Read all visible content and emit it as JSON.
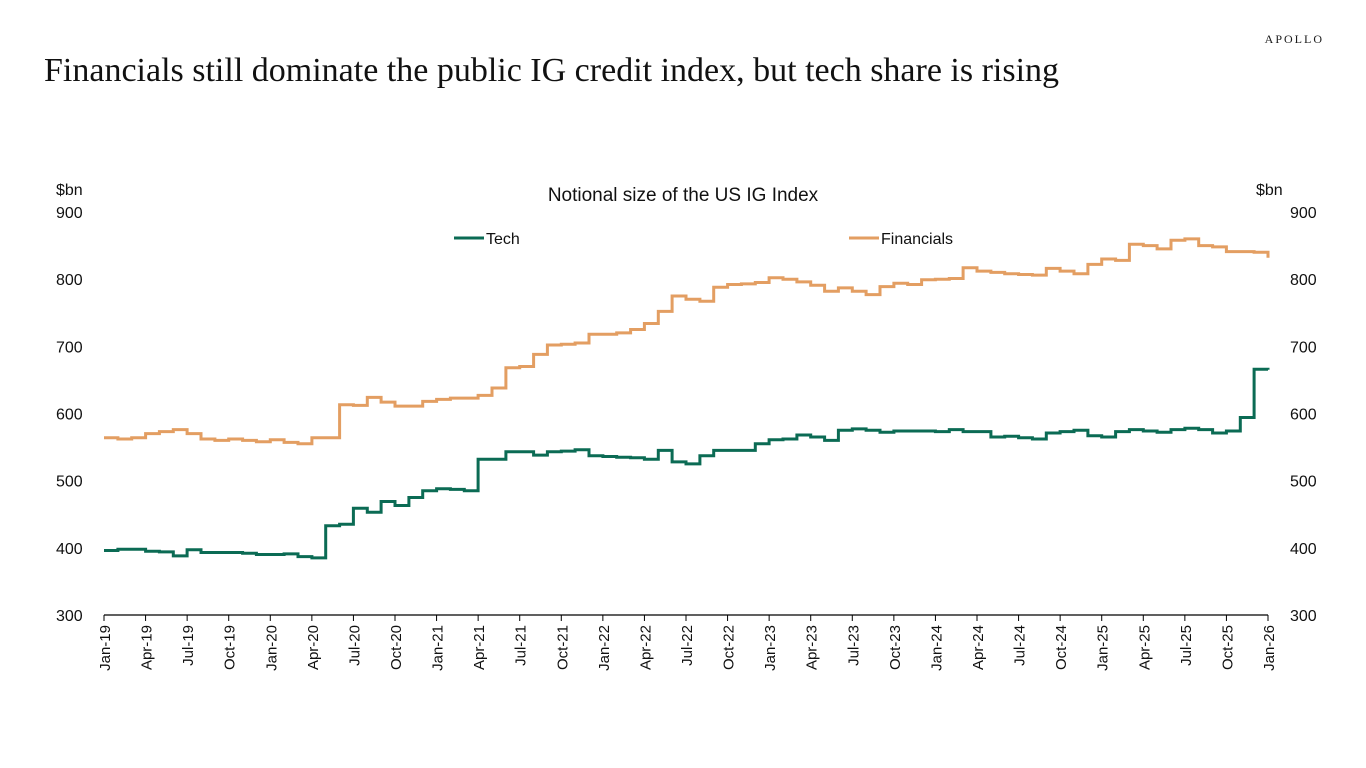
{
  "brand": "APOLLO",
  "headline": "Financials still dominate the public IG credit index, but tech share is rising",
  "colors": {
    "tech": "#0b6b54",
    "financials": "#e39e62",
    "axis": "#000000"
  },
  "chart_data": {
    "type": "line",
    "title": "Notional size of the US IG Index",
    "y_unit_left": "$bn",
    "y_unit_right": "$bn",
    "ylim": [
      300,
      900
    ],
    "yticks": [
      300,
      400,
      500,
      600,
      700,
      800,
      900
    ],
    "grid": false,
    "legend_placement": "top",
    "x_tick_labels": [
      "Jan-19",
      "Apr-19",
      "Jul-19",
      "Oct-19",
      "Jan-20",
      "Apr-20",
      "Jul-20",
      "Oct-20",
      "Jan-21",
      "Apr-21",
      "Jul-21",
      "Oct-21",
      "Jan-22",
      "Apr-22",
      "Jul-22",
      "Oct-22",
      "Jan-23",
      "Apr-23",
      "Jul-23",
      "Oct-23",
      "Jan-24",
      "Apr-24",
      "Jul-24",
      "Oct-24",
      "Jan-25",
      "Apr-25",
      "Jul-25",
      "Oct-25",
      "Jan-26"
    ],
    "x": [
      "Jan-19",
      "Feb-19",
      "Mar-19",
      "Apr-19",
      "May-19",
      "Jun-19",
      "Jul-19",
      "Aug-19",
      "Sep-19",
      "Oct-19",
      "Nov-19",
      "Dec-19",
      "Jan-20",
      "Feb-20",
      "Mar-20",
      "Apr-20",
      "May-20",
      "Jun-20",
      "Jul-20",
      "Aug-20",
      "Sep-20",
      "Oct-20",
      "Nov-20",
      "Dec-20",
      "Jan-21",
      "Feb-21",
      "Mar-21",
      "Apr-21",
      "May-21",
      "Jun-21",
      "Jul-21",
      "Aug-21",
      "Sep-21",
      "Oct-21",
      "Nov-21",
      "Dec-21",
      "Jan-22",
      "Feb-22",
      "Mar-22",
      "Apr-22",
      "May-22",
      "Jun-22",
      "Jul-22",
      "Aug-22",
      "Sep-22",
      "Oct-22",
      "Nov-22",
      "Dec-22",
      "Jan-23",
      "Feb-23",
      "Mar-23",
      "Apr-23",
      "May-23",
      "Jun-23",
      "Jul-23",
      "Aug-23",
      "Sep-23",
      "Oct-23",
      "Nov-23",
      "Dec-23",
      "Jan-24",
      "Feb-24",
      "Mar-24",
      "Apr-24",
      "May-24",
      "Jun-24",
      "Jul-24",
      "Aug-24",
      "Sep-24",
      "Oct-24",
      "Nov-24",
      "Dec-24",
      "Jan-25",
      "Feb-25",
      "Mar-25",
      "Apr-25",
      "May-25",
      "Jun-25",
      "Jul-25",
      "Aug-25",
      "Sep-25",
      "Oct-25",
      "Nov-25",
      "Dec-25",
      "Jan-26"
    ],
    "series": [
      {
        "name": "Tech",
        "values": [
          396,
          398,
          398,
          395,
          394,
          388,
          397,
          393,
          393,
          393,
          392,
          390,
          390,
          391,
          387,
          385,
          433,
          435,
          459,
          453,
          469,
          463,
          475,
          485,
          488,
          487,
          485,
          532,
          532,
          543,
          543,
          538,
          543,
          544,
          546,
          537,
          536,
          535,
          534,
          532,
          545,
          528,
          525,
          537,
          545,
          545,
          545,
          555,
          561,
          562,
          568,
          565,
          560,
          575,
          577,
          575,
          572,
          574,
          574,
          574,
          573,
          576,
          573,
          573,
          565,
          566,
          564,
          562,
          571,
          573,
          575,
          567,
          565,
          573,
          576,
          574,
          572,
          576,
          578,
          576,
          571,
          574,
          594,
          666,
          665
        ]
      },
      {
        "name": "Financials",
        "values": [
          564,
          562,
          564,
          570,
          573,
          576,
          570,
          562,
          560,
          562,
          560,
          558,
          561,
          557,
          555,
          564,
          564,
          613,
          612,
          624,
          617,
          611,
          611,
          618,
          621,
          623,
          623,
          627,
          638,
          668,
          670,
          688,
          702,
          703,
          705,
          718,
          718,
          720,
          725,
          734,
          752,
          775,
          770,
          767,
          788,
          792,
          793,
          795,
          802,
          800,
          796,
          791,
          782,
          787,
          782,
          777,
          789,
          794,
          792,
          799,
          800,
          801,
          817,
          812,
          810,
          808,
          807,
          806,
          816,
          812,
          808,
          822,
          830,
          828,
          852,
          850,
          845,
          858,
          860,
          850,
          848,
          841,
          841,
          840,
          832
        ]
      }
    ]
  }
}
